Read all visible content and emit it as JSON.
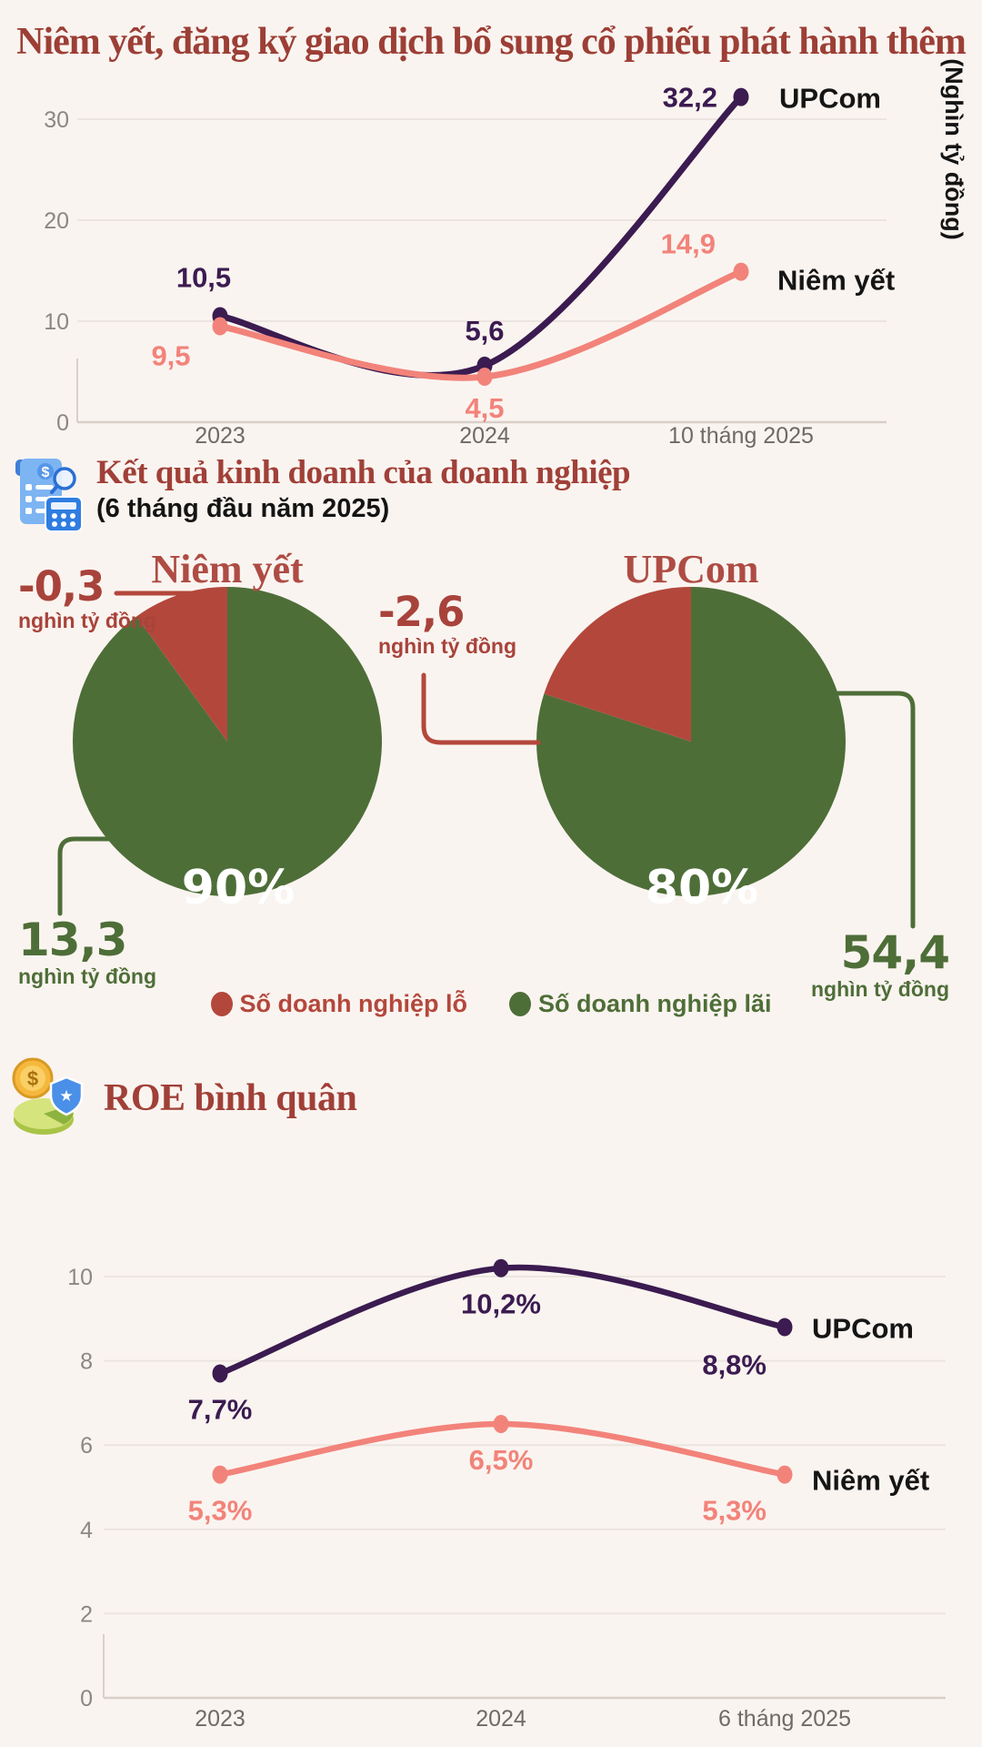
{
  "page": {
    "background": "#faf4f0"
  },
  "colors": {
    "accent_red_heading": "#9c3f36",
    "series_upcom": "#3b1b50",
    "series_niemyet": "#f2837a",
    "pie_loss_red": "#b4473c",
    "pie_profit_green": "#4e6e38",
    "axis_gray": "#8d8783"
  },
  "chart_data": [
    {
      "type": "line",
      "title": "Niêm yết, đăng ký giao dịch bổ sung cổ phiếu phát hành thêm",
      "unit": "(Nghìn tỷ đồng)",
      "categories": [
        "2023",
        "2024",
        "10 tháng 2025"
      ],
      "y_ticks": [
        0,
        10,
        20,
        30
      ],
      "ylim": [
        0,
        35
      ],
      "grid": true,
      "legend_position": "right-of-last-point",
      "series": [
        {
          "name": "UPCom",
          "color": "#3b1b50",
          "values": [
            10.5,
            5.6,
            32.2
          ],
          "labels": [
            "10,5",
            "5,6",
            "32,2"
          ]
        },
        {
          "name": "Niêm yết",
          "color": "#f2837a",
          "values": [
            9.5,
            4.5,
            14.9
          ],
          "labels": [
            "9,5",
            "4,5",
            "14,9"
          ]
        }
      ]
    },
    {
      "type": "pie",
      "title": "Kết quả kinh doanh của doanh nghiệp",
      "subtitle": "(6 tháng đầu năm 2025)",
      "legend": [
        {
          "label": "Số doanh nghiệp lỗ",
          "color": "#b4473c"
        },
        {
          "label": "Số doanh nghiệp lãi",
          "color": "#4e6e38"
        }
      ],
      "pies": [
        {
          "name": "Niêm yết",
          "loss": {
            "pct": 10,
            "amount": "-0,3",
            "unit": "nghìn tỷ đồng"
          },
          "profit": {
            "pct": 90,
            "pct_label": "90%",
            "amount": "13,3",
            "unit": "nghìn tỷ đồng"
          }
        },
        {
          "name": "UPCom",
          "loss": {
            "pct": 20,
            "amount": "-2,6",
            "unit": "nghìn tỷ đồng"
          },
          "profit": {
            "pct": 80,
            "pct_label": "80%",
            "amount": "54,4",
            "unit": "nghìn tỷ đồng"
          }
        }
      ]
    },
    {
      "type": "line",
      "title": "ROE bình quân",
      "categories": [
        "2023",
        "2024",
        "6 tháng 2025"
      ],
      "y_ticks": [
        0,
        2,
        4,
        6,
        8,
        10
      ],
      "ylim": [
        0,
        11
      ],
      "grid": true,
      "legend_position": "right-of-last-point",
      "series": [
        {
          "name": "UPCom",
          "color": "#3b1b50",
          "values": [
            7.7,
            10.2,
            8.8
          ],
          "labels": [
            "7,7%",
            "10,2%",
            "8,8%"
          ]
        },
        {
          "name": "Niêm yết",
          "color": "#f2837a",
          "values": [
            5.3,
            6.5,
            5.3
          ],
          "labels": [
            "5,3%",
            "6,5%",
            "5,3%"
          ]
        }
      ]
    }
  ]
}
